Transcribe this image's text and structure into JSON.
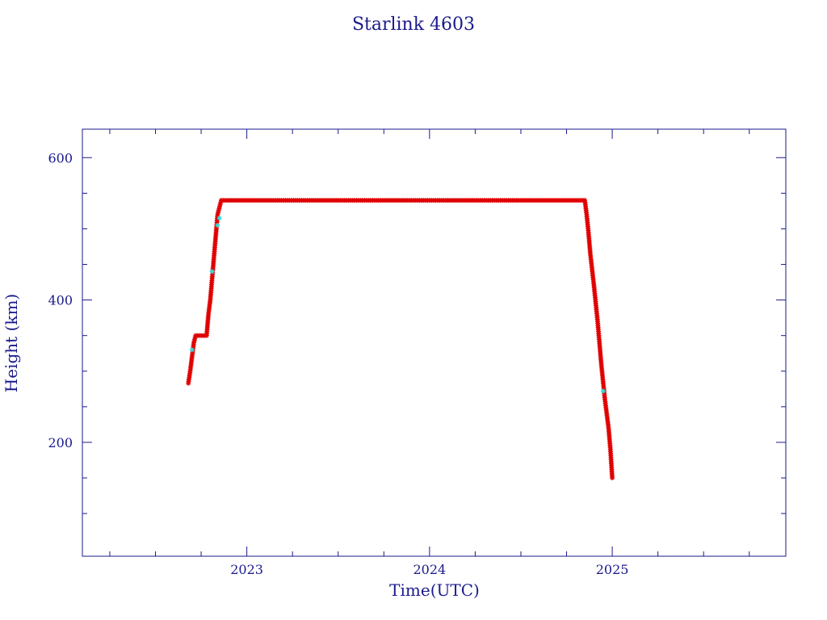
{
  "chart_data": {
    "type": "scatter",
    "title": "Starlink 4603",
    "xlabel": "Time(UTC)",
    "ylabel": "Height (km)",
    "xlim": [
      2022.1,
      2025.95
    ],
    "ylim": [
      40,
      640
    ],
    "x_major_ticks": [
      2023,
      2024,
      2025
    ],
    "x_major_labels": [
      "2023",
      "2024",
      "2025"
    ],
    "y_major_ticks": [
      200,
      400,
      600
    ],
    "y_major_labels": [
      "200",
      "400",
      "600"
    ],
    "grid": false,
    "legend": "none",
    "series": [
      {
        "marker": "star",
        "color": "#e00000",
        "x": [
          2022.68,
          2022.69,
          2022.7,
          2022.71,
          2022.72,
          2022.73,
          2022.75,
          2022.78,
          2022.79,
          2022.8,
          2022.81,
          2022.82,
          2022.83,
          2022.84,
          2022.86,
          2023.0,
          2023.5,
          2024.0,
          2024.5,
          2024.85,
          2024.86,
          2024.87,
          2024.88,
          2024.9,
          2024.92,
          2024.94,
          2024.96,
          2024.98,
          2024.99,
          2025.0
        ],
        "y": [
          283,
          300,
          320,
          340,
          350,
          350,
          350,
          350,
          380,
          400,
          430,
          460,
          490,
          520,
          540,
          540,
          540,
          540,
          540,
          540,
          520,
          495,
          465,
          420,
          370,
          310,
          260,
          220,
          190,
          150
        ]
      },
      {
        "marker": "star",
        "color": "#33dddd",
        "x": [
          2022.7,
          2022.81,
          2022.84,
          2022.85,
          2024.95
        ],
        "y": [
          330,
          440,
          505,
          515,
          272
        ]
      }
    ]
  }
}
